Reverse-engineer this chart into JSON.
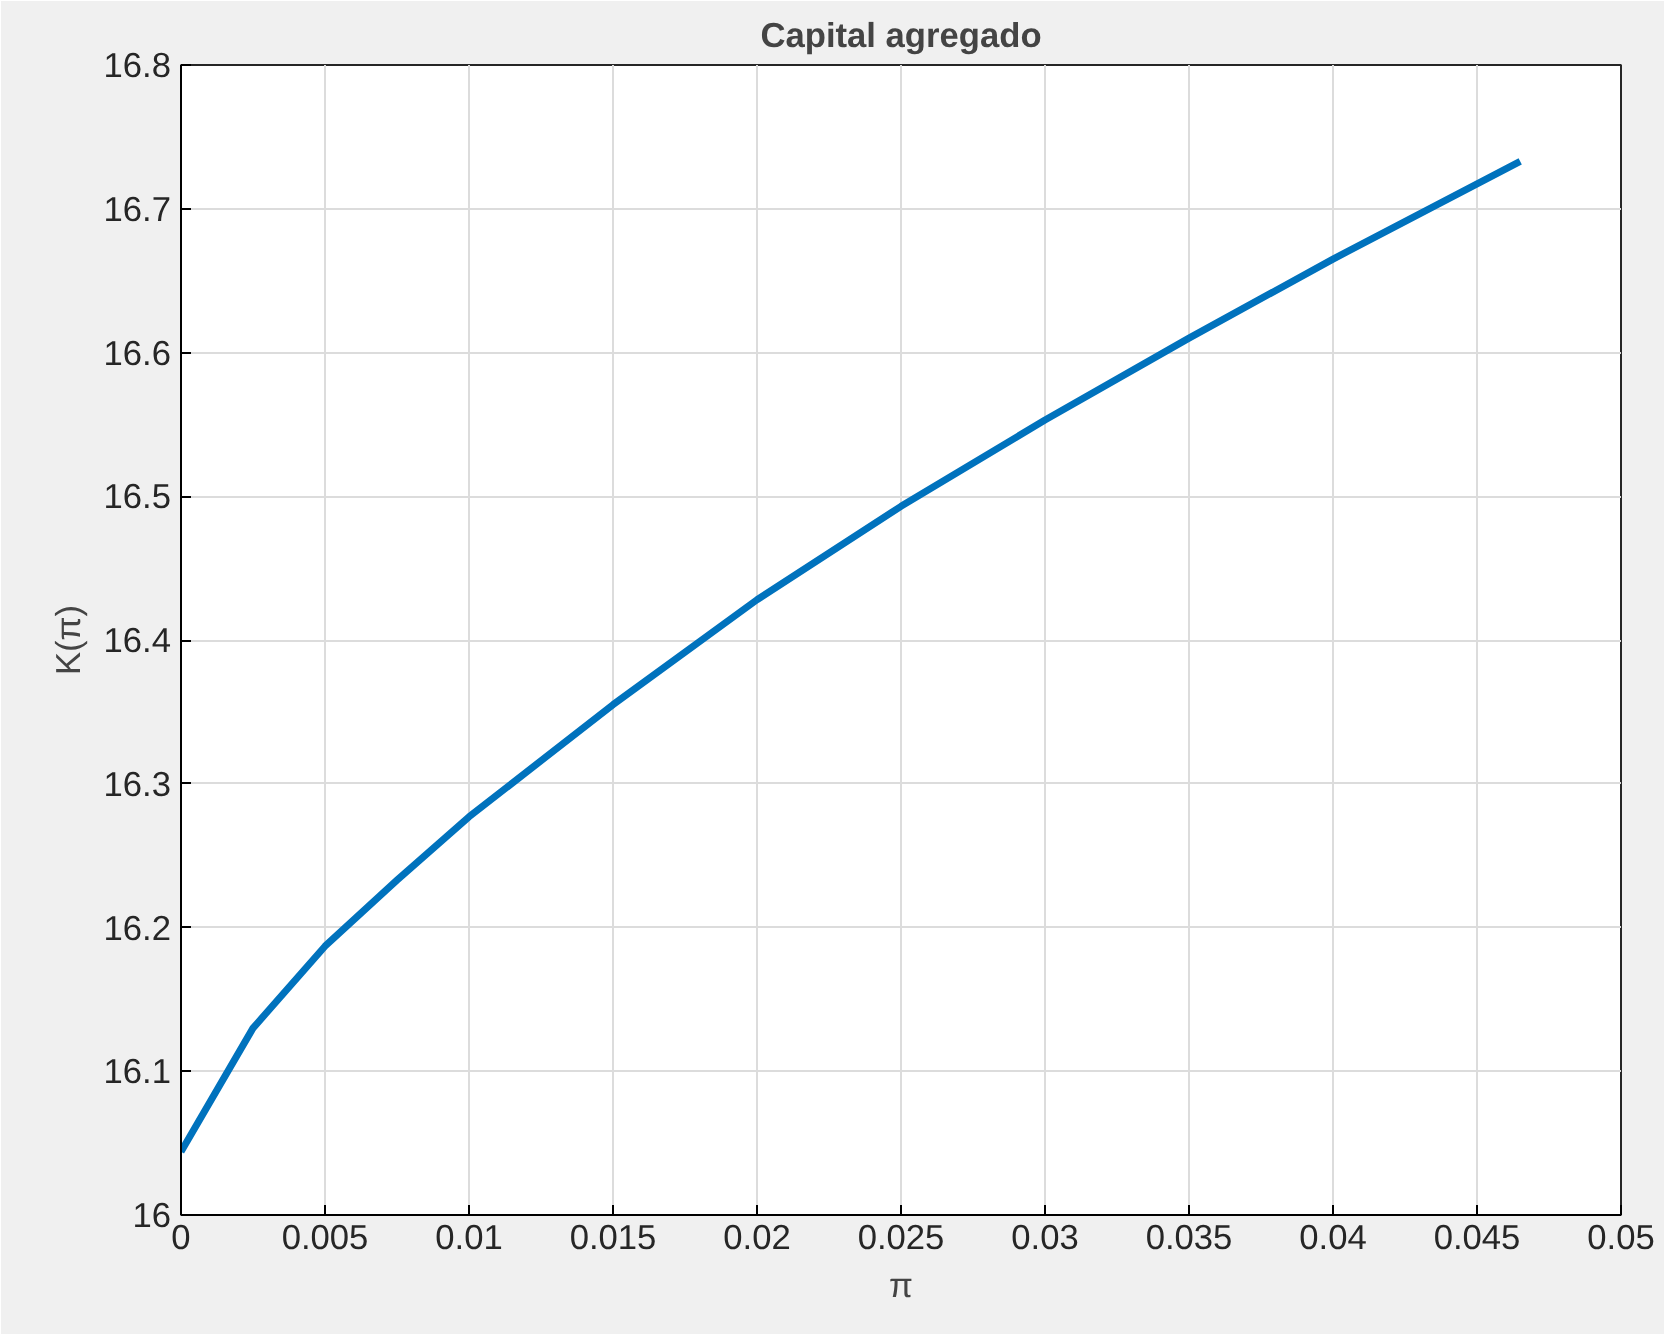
{
  "chart_data": {
    "type": "line",
    "title": "Capital agregado",
    "xlabel": "π",
    "ylabel": "K(π)",
    "x": [
      0,
      0.0025,
      0.005,
      0.0075,
      0.01,
      0.015,
      0.02,
      0.025,
      0.03,
      0.035,
      0.04,
      0.0465
    ],
    "series": [
      {
        "color": "#0072bd",
        "values": [
          16.044,
          16.13,
          16.187,
          16.233,
          16.277,
          16.355,
          16.428,
          16.493,
          16.553,
          16.61,
          16.665,
          16.733
        ]
      }
    ],
    "xlim": [
      0,
      0.05
    ],
    "ylim": [
      16,
      16.8
    ],
    "xticks": [
      0,
      0.005,
      0.01,
      0.015,
      0.02,
      0.025,
      0.03,
      0.035,
      0.04,
      0.045,
      0.05
    ],
    "yticks": [
      16,
      16.1,
      16.2,
      16.3,
      16.4,
      16.5,
      16.6,
      16.7,
      16.8
    ],
    "grid": true,
    "marker": "none",
    "line_style": "solid"
  }
}
